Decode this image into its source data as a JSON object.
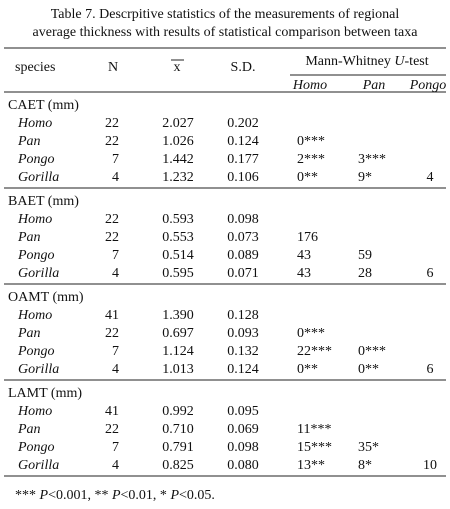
{
  "title": {
    "lines": [
      "Table 7.  Descrpitive statistics of the measurements of regional",
      "average thickness with results of statistical comparison between taxa"
    ]
  },
  "header": {
    "species": "species",
    "n": "N",
    "mean": "x",
    "sd": "S.D.",
    "test": [
      "Mann-Whitney ",
      "U",
      "-test"
    ],
    "comparisons": [
      "Homo",
      "Pan",
      "Pongo"
    ]
  },
  "groups": [
    {
      "label": "CAET (mm)",
      "rows": [
        {
          "species": "Homo",
          "n": "22",
          "mean": "2.027",
          "sd": "0.202",
          "tests": []
        },
        {
          "species": "Pan",
          "n": "22",
          "mean": "1.026",
          "sd": "0.124",
          "tests": [
            "0***"
          ]
        },
        {
          "species": "Pongo",
          "n": "7",
          "mean": "1.442",
          "sd": "0.177",
          "tests": [
            "2***",
            "3***"
          ]
        },
        {
          "species": "Gorilla",
          "n": "4",
          "mean": "1.232",
          "sd": "0.106",
          "tests": [
            "0**",
            "9*",
            "4"
          ]
        }
      ]
    },
    {
      "label": "BAET (mm)",
      "rows": [
        {
          "species": "Homo",
          "n": "22",
          "mean": "0.593",
          "sd": "0.098",
          "tests": []
        },
        {
          "species": "Pan",
          "n": "22",
          "mean": "0.553",
          "sd": "0.073",
          "tests": [
            "176"
          ]
        },
        {
          "species": "Pongo",
          "n": "7",
          "mean": "0.514",
          "sd": "0.089",
          "tests": [
            "43",
            "59"
          ]
        },
        {
          "species": "Gorilla",
          "n": "4",
          "mean": "0.595",
          "sd": "0.071",
          "tests": [
            "43",
            "28",
            "6"
          ]
        }
      ]
    },
    {
      "label": "OAMT (mm)",
      "rows": [
        {
          "species": "Homo",
          "n": "41",
          "mean": "1.390",
          "sd": "0.128",
          "tests": []
        },
        {
          "species": "Pan",
          "n": "22",
          "mean": "0.697",
          "sd": "0.093",
          "tests": [
            "0***"
          ]
        },
        {
          "species": "Pongo",
          "n": "7",
          "mean": "1.124",
          "sd": "0.132",
          "tests": [
            "22***",
            "0***"
          ]
        },
        {
          "species": "Gorilla",
          "n": "4",
          "mean": "1.013",
          "sd": "0.124",
          "tests": [
            "0**",
            "0**",
            "6"
          ]
        }
      ]
    },
    {
      "label": "LAMT (mm)",
      "rows": [
        {
          "species": "Homo",
          "n": "41",
          "mean": "0.992",
          "sd": "0.095",
          "tests": []
        },
        {
          "species": "Pan",
          "n": "22",
          "mean": "0.710",
          "sd": "0.069",
          "tests": [
            "11***"
          ]
        },
        {
          "species": "Pongo",
          "n": "7",
          "mean": "0.791",
          "sd": "0.098",
          "tests": [
            "15***",
            "35*"
          ]
        },
        {
          "species": "Gorilla",
          "n": "4",
          "mean": "0.825",
          "sd": "0.080",
          "tests": [
            "13**",
            "8*",
            "10"
          ]
        }
      ]
    }
  ],
  "footnote": [
    "*** ",
    "P",
    "<0.001, ** ",
    "P",
    "<0.01, * ",
    "P",
    "<0.05."
  ]
}
